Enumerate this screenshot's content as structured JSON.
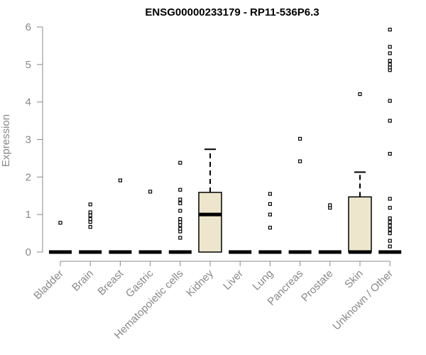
{
  "chart_data": {
    "type": "box",
    "title": "ENSG00000233179 - RP11-536P6.3",
    "ylabel": "Expression",
    "ylim": [
      0,
      6
    ],
    "yticks": [
      "0",
      "1",
      "2",
      "3",
      "4",
      "5",
      "6"
    ],
    "categories": [
      "Bladder",
      "Brain",
      "Breast",
      "Gastric",
      "Hematopoietic cells",
      "Kidney",
      "Liver",
      "Lung",
      "Pancreas",
      "Prostate",
      "Skin",
      "Unknown / Other"
    ],
    "boxes": [
      {
        "q1": 0,
        "median": 0,
        "q3": 0,
        "whisker_low": 0,
        "whisker_high": 0,
        "outliers": [
          0.78
        ]
      },
      {
        "q1": 0,
        "median": 0,
        "q3": 0,
        "whisker_low": 0,
        "whisker_high": 0,
        "outliers": [
          0.67,
          0.8,
          0.88,
          0.98,
          1.06,
          1.27
        ]
      },
      {
        "q1": 0,
        "median": 0,
        "q3": 0,
        "whisker_low": 0,
        "whisker_high": 0,
        "outliers": [
          1.91
        ]
      },
      {
        "q1": 0,
        "median": 0,
        "q3": 0,
        "whisker_low": 0,
        "whisker_high": 0,
        "outliers": [
          1.61
        ]
      },
      {
        "q1": 0,
        "median": 0,
        "q3": 0,
        "whisker_low": 0,
        "whisker_high": 0,
        "outliers": [
          0.38,
          0.55,
          0.62,
          0.72,
          0.8,
          0.88,
          1.1,
          1.3,
          1.4,
          1.66,
          2.38
        ]
      },
      {
        "q1": 0,
        "median": 1.0,
        "q3": 1.59,
        "whisker_low": 0,
        "whisker_high": 2.74,
        "outliers": []
      },
      {
        "q1": 0,
        "median": 0,
        "q3": 0,
        "whisker_low": 0,
        "whisker_high": 0,
        "outliers": []
      },
      {
        "q1": 0,
        "median": 0,
        "q3": 0,
        "whisker_low": 0,
        "whisker_high": 0,
        "outliers": [
          0.65,
          1.0,
          1.28,
          1.55
        ]
      },
      {
        "q1": 0,
        "median": 0,
        "q3": 0,
        "whisker_low": 0,
        "whisker_high": 0,
        "outliers": [
          2.42,
          3.02
        ]
      },
      {
        "q1": 0,
        "median": 0,
        "q3": 0,
        "whisker_low": 0,
        "whisker_high": 0,
        "outliers": [
          1.18,
          1.25
        ]
      },
      {
        "q1": 0,
        "median": 0,
        "q3": 1.47,
        "whisker_low": 0,
        "whisker_high": 2.13,
        "outliers": [
          4.21
        ]
      },
      {
        "q1": 0,
        "median": 0,
        "q3": 0,
        "whisker_low": 0,
        "whisker_high": 0,
        "outliers": [
          0.15,
          0.3,
          0.5,
          0.6,
          0.7,
          0.8,
          0.9,
          1.18,
          1.42,
          2.62,
          3.5,
          4.03,
          4.85,
          4.92,
          5.0,
          5.1,
          5.3,
          5.47,
          5.93
        ]
      }
    ],
    "colors": {
      "box_fill": "#ede6cc",
      "axis": "#888888",
      "text": "#888888",
      "title": "#000000",
      "marks": "#000000"
    }
  }
}
